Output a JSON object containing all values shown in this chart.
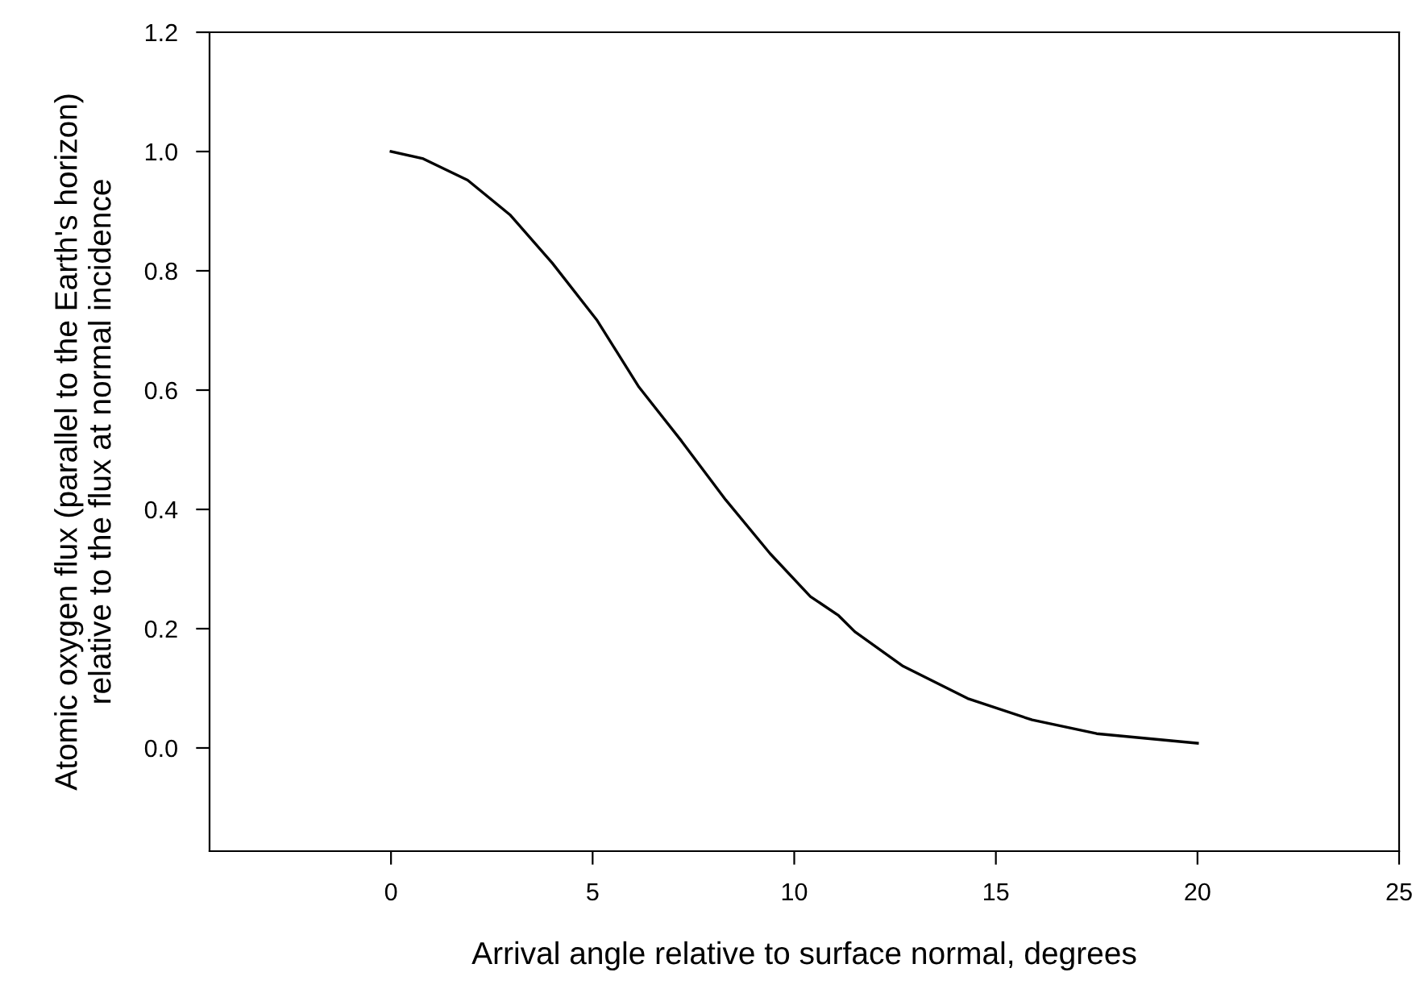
{
  "chart_data": {
    "type": "line",
    "xlabel": "Arrival angle relative to surface normal, degrees",
    "ylabel": "Atomic oxygen flux (parallel to the Earth's horizon)\nrelative to the flux at normal incidence",
    "series": [
      {
        "color": "#000000",
        "x": [
          0,
          0.8,
          1.9,
          2.95,
          4.0,
          5.1,
          6.15,
          7.2,
          8.3,
          9.4,
          10.4,
          11.1,
          11.5,
          12.7,
          14.3,
          15.9,
          17.5,
          20
        ],
        "values": [
          1.0,
          0.988,
          0.952,
          0.894,
          0.813,
          0.718,
          0.605,
          0.515,
          0.416,
          0.326,
          0.254,
          0.222,
          0.195,
          0.137,
          0.083,
          0.047,
          0.024,
          0.008
        ]
      }
    ],
    "xlim": [
      -4.5,
      25
    ],
    "xticks": [
      0,
      5,
      10,
      15,
      20,
      25
    ],
    "ylim": [
      -0.173,
      1.2
    ],
    "yticks": [
      {
        "value": 0,
        "label": "0.0"
      },
      {
        "value": 0.2,
        "label": "0.2"
      },
      {
        "value": 0.4,
        "label": "0.4"
      },
      {
        "value": 0.6,
        "label": "0.6"
      },
      {
        "value": 0.8,
        "label": "0.8"
      },
      {
        "value": 1.0,
        "label": "1.0"
      },
      {
        "value": 1.2,
        "label": "1.2"
      }
    ],
    "grid": false,
    "legend": false,
    "marker": "none",
    "line_style": "solid"
  }
}
